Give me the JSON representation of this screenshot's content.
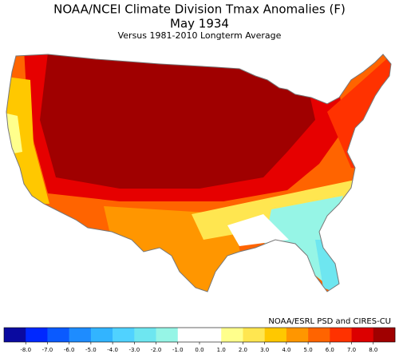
{
  "header": {
    "title": "NOAA/NCEI Climate Division Tmax Anomalies (F)",
    "subtitle": "May 1934",
    "note": "Versus 1981-2010 Longterm Average"
  },
  "attribution": "NOAA/ESRL PSD and CIRES-CU",
  "colorbar": {
    "colors": [
      "#0a0aa0",
      "#0028ff",
      "#0a5aff",
      "#1e8cff",
      "#32b4ff",
      "#50d2ff",
      "#6ee6f0",
      "#96f5e6",
      "#ffffff",
      "#ffffff",
      "#ffff8c",
      "#ffe650",
      "#ffc800",
      "#ff9600",
      "#ff6400",
      "#ff3200",
      "#dc0000",
      "#a00000"
    ],
    "ticks": [
      {
        "value": -8,
        "label": "-8.0"
      },
      {
        "value": -7,
        "label": "-7.0"
      },
      {
        "value": -6,
        "label": "-6.0"
      },
      {
        "value": -5,
        "label": "-5.0"
      },
      {
        "value": -4,
        "label": "-4.0"
      },
      {
        "value": -3,
        "label": "-3.0"
      },
      {
        "value": -2,
        "label": "-2.0"
      },
      {
        "value": -1,
        "label": "-1.0"
      },
      {
        "value": 0,
        "label": "0.0"
      },
      {
        "value": 1,
        "label": "1.0"
      },
      {
        "value": 2,
        "label": "2.0"
      },
      {
        "value": 3,
        "label": "3.0"
      },
      {
        "value": 4,
        "label": "4.0"
      },
      {
        "value": 5,
        "label": "5.0"
      },
      {
        "value": 6,
        "label": "6.0"
      },
      {
        "value": 7,
        "label": "7.0"
      },
      {
        "value": 8,
        "label": "8.0"
      }
    ]
  }
}
